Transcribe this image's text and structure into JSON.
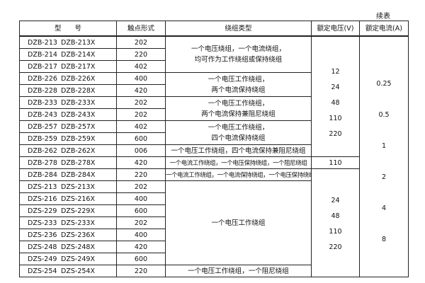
{
  "continued_label": "续表",
  "headers": {
    "model": "型　　号",
    "contact": "触点形式",
    "winding": "绕组类型",
    "voltage": "额定电压(V)",
    "current": "额定电流(A)"
  },
  "rows": [
    {
      "m1": "DZB-213",
      "m2": "DZB-213X",
      "contact": "202"
    },
    {
      "m1": "DZB-214",
      "m2": "DZB-214X",
      "contact": "220"
    },
    {
      "m1": "DZB-217",
      "m2": "DZB-217X",
      "contact": "402"
    },
    {
      "m1": "DZB-226",
      "m2": "DZB-226X",
      "contact": "400"
    },
    {
      "m1": "DZB-228",
      "m2": "DZB-228X",
      "contact": "420"
    },
    {
      "m1": "DZB-233",
      "m2": "DZB-233X",
      "contact": "202"
    },
    {
      "m1": "DZB-243",
      "m2": "DZB-243X",
      "contact": "202"
    },
    {
      "m1": "DZB-257",
      "m2": "DZB-257X",
      "contact": "402"
    },
    {
      "m1": "DZB-259",
      "m2": "DZB-259X",
      "contact": "600"
    },
    {
      "m1": "DZB-262",
      "m2": "DZB-262X",
      "contact": "006"
    },
    {
      "m1": "DZB-278",
      "m2": "DZB-278X",
      "contact": "420"
    },
    {
      "m1": "DZB-284",
      "m2": "DZB-284X",
      "contact": "220"
    },
    {
      "m1": "DZS-213",
      "m2": "DZS-213X",
      "contact": "202"
    },
    {
      "m1": "DZS-216",
      "m2": "DZS-216X",
      "contact": "400"
    },
    {
      "m1": "DZS-229",
      "m2": "DZS-229X",
      "contact": "600"
    },
    {
      "m1": "DZS-233",
      "m2": "DZS-233X",
      "contact": "202"
    },
    {
      "m1": "DZS-236",
      "m2": "DZS-236X",
      "contact": "400"
    },
    {
      "m1": "DZS-248",
      "m2": "DZS-248X",
      "contact": "420"
    },
    {
      "m1": "DZS-249",
      "m2": "DZS-249X",
      "contact": "600"
    },
    {
      "m1": "DZS-254",
      "m2": "DZS-254X",
      "contact": "220"
    }
  ],
  "windings": [
    {
      "l1": "一个电压绕组，一个电流绕组，",
      "l2": "均可作为工作绕组或保持绕组"
    },
    {
      "l1": "一个电压工作绕组，",
      "l2": "两个电流保持绕组"
    },
    {
      "l1": "一个电压工作绕组，",
      "l2": "两个电流保持兼阻尼绕组"
    },
    {
      "l1": "一个电压工作绕组，",
      "l2": "四个电流保持绕组"
    },
    {
      "l1": "一个电压工作绕组，四个电流保持兼阻尼绕组"
    },
    {
      "l1": "一个电流工作绕组，一个电压保持绕组，一个阻尼绕组"
    },
    {
      "l1": "一个电流工作绕组，一个电流保持绕组，一个电压保持绕组"
    },
    {
      "l1": "一个电压工作绕组"
    },
    {
      "l1": "一个电压工作绕组，一个阻尼绕组"
    }
  ],
  "voltage_groups": [
    [
      "12",
      "24",
      "48",
      "110",
      "220"
    ],
    [
      "110"
    ],
    [
      "24",
      "48",
      "110",
      "220"
    ]
  ],
  "currents": [
    "0.25",
    "0.5",
    "1",
    "2",
    "4",
    "8"
  ]
}
